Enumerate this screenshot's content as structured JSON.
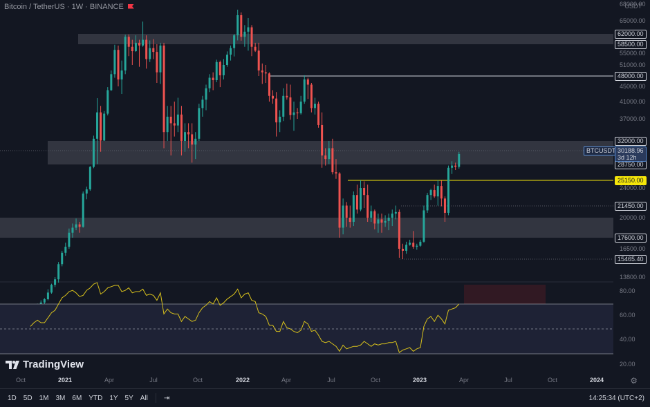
{
  "header": {
    "title": "Bitcoin / TetherUS · 1W · BINANCE",
    "currency": "USDT"
  },
  "colors": {
    "up": "#26a69a",
    "down": "#ef5350",
    "rsi": "#d9c21c",
    "yellow_line": "#f5e60a",
    "background": "#131722"
  },
  "price_labels": [
    "62000.00",
    "58500.00",
    "48000.00",
    "32000.00",
    "28750.00",
    "25150.00",
    "21450.00",
    "17600.00",
    "15465.40"
  ],
  "current": {
    "symbol": "BTCUSDT",
    "price": "30188.96",
    "countdown": "3d 12h"
  },
  "time_axis": [
    "Oct",
    "2021",
    "Apr",
    "Jul",
    "Oct",
    "2022",
    "Apr",
    "Jul",
    "Oct",
    "2023",
    "Apr",
    "Jul",
    "Oct",
    "2024"
  ],
  "rsi_axis": [
    "80.00",
    "60.00",
    "40.00",
    "20.00"
  ],
  "logo": {
    "text": "TradingView"
  },
  "bottom_bar": {
    "ranges": [
      "1D",
      "5D",
      "1M",
      "3M",
      "6M",
      "YTD",
      "1Y",
      "5Y",
      "All"
    ],
    "clock": "14:25:34 (UTC+2)"
  },
  "chart_data": {
    "type": "candlestick",
    "symbol": "BTCUSDT",
    "interval": "1W",
    "y_axis_ticks": [
      68000,
      65000,
      62000,
      58500,
      55000,
      51000,
      48000,
      45000,
      41000,
      37000,
      32000,
      28750,
      25150,
      24000,
      21450,
      20000,
      17600,
      16500,
      15465,
      13800
    ],
    "x_axis_ticks": [
      "Oct",
      "2021",
      "Apr",
      "Jul",
      "Oct",
      "2022",
      "Apr",
      "Jul",
      "Oct",
      "2023",
      "Apr",
      "Jul",
      "Oct",
      "2024"
    ],
    "support_resistance_zones": [
      [
        58500,
        62000
      ],
      [
        28750,
        32000
      ],
      [
        17600,
        20000
      ]
    ],
    "horizontal_levels": [
      48000,
      25150,
      21450,
      15465.4
    ],
    "last_price": 30188.96,
    "candles": [
      [
        10800,
        11000,
        10300,
        10600
      ],
      [
        10600,
        11200,
        10500,
        11000
      ],
      [
        11000,
        11400,
        10800,
        11300
      ],
      [
        11300,
        11700,
        11100,
        11500
      ],
      [
        11500,
        11900,
        11200,
        11800
      ],
      [
        11800,
        12700,
        11700,
        12400
      ],
      [
        12400,
        13200,
        12300,
        13100
      ],
      [
        13100,
        13800,
        12900,
        13600
      ],
      [
        13600,
        15200,
        13300,
        15000
      ],
      [
        15000,
        16300,
        14800,
        16100
      ],
      [
        16100,
        17100,
        15800,
        16700
      ],
      [
        16700,
        18700,
        16500,
        18200
      ],
      [
        18200,
        19300,
        17600,
        18800
      ],
      [
        18800,
        19900,
        18500,
        19200
      ],
      [
        19200,
        19500,
        18200,
        18900
      ],
      [
        18900,
        23500,
        18800,
        23200
      ],
      [
        23200,
        24200,
        22400,
        23800
      ],
      [
        23800,
        28400,
        23600,
        28200
      ],
      [
        28200,
        33200,
        27900,
        32500
      ],
      [
        32500,
        41900,
        28800,
        38500
      ],
      [
        38500,
        40000,
        30500,
        32100
      ],
      [
        32100,
        38800,
        32000,
        38200
      ],
      [
        38200,
        44800,
        37800,
        44000
      ],
      [
        44000,
        49500,
        43800,
        48500
      ],
      [
        48500,
        58300,
        47500,
        56300
      ],
      [
        56300,
        58000,
        45000,
        47000
      ],
      [
        47000,
        52500,
        43000,
        49500
      ],
      [
        49500,
        61700,
        48500,
        61000
      ],
      [
        61000,
        61800,
        54000,
        57500
      ],
      [
        57500,
        60000,
        51000,
        55800
      ],
      [
        55800,
        61500,
        55500,
        59000
      ],
      [
        59000,
        60000,
        50500,
        58000
      ],
      [
        58000,
        64800,
        57500,
        60000
      ],
      [
        60000,
        61500,
        50000,
        53000
      ],
      [
        53000,
        59800,
        52000,
        57000
      ],
      [
        57000,
        60200,
        53000,
        55500
      ],
      [
        55500,
        58500,
        46000,
        49000
      ],
      [
        49000,
        59000,
        45700,
        58000
      ],
      [
        58000,
        59000,
        31000,
        34000
      ],
      [
        34000,
        40000,
        32000,
        37500
      ],
      [
        37500,
        40000,
        30000,
        36000
      ],
      [
        36000,
        41000,
        33000,
        35500
      ],
      [
        35500,
        42000,
        34000,
        38000
      ],
      [
        38000,
        40000,
        30000,
        32000
      ],
      [
        32000,
        36000,
        30500,
        34000
      ],
      [
        34000,
        36000,
        31000,
        33500
      ],
      [
        33500,
        36000,
        29000,
        31500
      ],
      [
        31500,
        34000,
        29500,
        32500
      ],
      [
        32500,
        40500,
        32000,
        39500
      ],
      [
        39500,
        42500,
        37500,
        41500
      ],
      [
        41500,
        45500,
        39000,
        44500
      ],
      [
        44500,
        48500,
        43500,
        47500
      ],
      [
        47500,
        49000,
        44000,
        46800
      ],
      [
        46800,
        52800,
        46200,
        52000
      ],
      [
        52000,
        52500,
        44800,
        48200
      ],
      [
        48200,
        53000,
        47000,
        51000
      ],
      [
        51000,
        55700,
        50500,
        54500
      ],
      [
        54500,
        58000,
        52500,
        57000
      ],
      [
        57000,
        62000,
        53900,
        61500
      ],
      [
        61500,
        67000,
        59800,
        66000
      ],
      [
        66000,
        66500,
        59700,
        61000
      ],
      [
        61000,
        64000,
        57500,
        62500
      ],
      [
        62500,
        65500,
        56000,
        63500
      ],
      [
        63500,
        64000,
        54000,
        57500
      ],
      [
        57500,
        59000,
        55500,
        56000
      ],
      [
        56000,
        59000,
        48000,
        49500
      ],
      [
        49500,
        51500,
        45700,
        49000
      ],
      [
        49000,
        51000,
        46000,
        48700
      ],
      [
        48700,
        49000,
        41000,
        42500
      ],
      [
        42500,
        44000,
        40500,
        41800
      ],
      [
        41800,
        43500,
        33000,
        36200
      ],
      [
        36200,
        39000,
        34000,
        37500
      ],
      [
        37500,
        44500,
        36500,
        42500
      ],
      [
        42500,
        45800,
        41500,
        42100
      ],
      [
        42100,
        45500,
        36800,
        37900
      ],
      [
        37900,
        41000,
        34300,
        38500
      ],
      [
        38500,
        39500,
        37000,
        38300
      ],
      [
        38300,
        42500,
        38000,
        41000
      ],
      [
        41000,
        48200,
        40500,
        47000
      ],
      [
        47000,
        47500,
        41700,
        45500
      ],
      [
        45500,
        46000,
        38500,
        39500
      ],
      [
        39500,
        42000,
        38000,
        40500
      ],
      [
        40500,
        41000,
        35000,
        35600
      ],
      [
        35600,
        38500,
        28000,
        30000
      ],
      [
        30000,
        31000,
        28500,
        29500
      ],
      [
        29500,
        32000,
        28800,
        31000
      ],
      [
        31000,
        32500,
        26500,
        27000
      ],
      [
        27000,
        29500,
        25500,
        26700
      ],
      [
        26700,
        27000,
        17600,
        18800
      ],
      [
        18800,
        22500,
        18000,
        21500
      ],
      [
        21500,
        22000,
        18900,
        20000
      ],
      [
        20000,
        21500,
        18800,
        19500
      ],
      [
        19500,
        23500,
        19000,
        23000
      ],
      [
        23000,
        24500,
        20500,
        21000
      ],
      [
        21000,
        25150,
        20800,
        24000
      ],
      [
        24000,
        25000,
        21200,
        23000
      ],
      [
        23000,
        24500,
        19500,
        20000
      ],
      [
        20000,
        21500,
        19500,
        20800
      ],
      [
        20800,
        21000,
        18600,
        19300
      ],
      [
        19300,
        20500,
        18200,
        19800
      ],
      [
        19800,
        20500,
        18200,
        19400
      ],
      [
        19400,
        20300,
        18900,
        19600
      ],
      [
        19600,
        20500,
        18500,
        20000
      ],
      [
        20000,
        21000,
        19000,
        20500
      ],
      [
        20500,
        21500,
        19800,
        20700
      ],
      [
        20700,
        21000,
        15600,
        16500
      ],
      [
        16500,
        17000,
        15465,
        16300
      ],
      [
        16300,
        17200,
        16000,
        16900
      ],
      [
        16900,
        17400,
        16800,
        17100
      ],
      [
        17100,
        18400,
        16500,
        16700
      ],
      [
        16700,
        17000,
        16400,
        16800
      ],
      [
        16800,
        17400,
        16700,
        17200
      ],
      [
        17200,
        21500,
        17100,
        20900
      ],
      [
        20900,
        23300,
        20600,
        23000
      ],
      [
        23000,
        23900,
        22300,
        23700
      ],
      [
        23700,
        24500,
        22600,
        22800
      ],
      [
        22800,
        25200,
        21500,
        24300
      ],
      [
        24300,
        25100,
        21400,
        22500
      ],
      [
        22500,
        22800,
        19500,
        20600
      ],
      [
        20600,
        28500,
        20300,
        28000
      ],
      [
        28000,
        29200,
        26600,
        28500
      ],
      [
        28500,
        29000,
        27500,
        28200
      ],
      [
        28200,
        30500,
        27800,
        30188.96
      ]
    ]
  },
  "rsi_data": {
    "levels": [
      70,
      50,
      30
    ],
    "axis": [
      80,
      60,
      40,
      20
    ],
    "values": [
      52,
      55,
      57,
      55,
      55,
      59,
      63,
      65,
      70,
      75,
      77,
      80,
      81,
      79,
      76,
      77,
      81,
      83,
      86,
      89,
      78,
      80,
      83,
      84,
      85,
      85,
      80,
      81,
      83,
      79,
      80,
      80,
      82,
      77,
      78,
      77,
      73,
      79,
      62,
      66,
      63,
      62,
      62,
      56,
      60,
      58,
      56,
      57,
      63,
      67,
      69,
      72,
      70,
      75,
      69,
      71,
      74,
      76,
      78,
      82,
      75,
      78,
      79,
      73,
      72,
      63,
      62,
      60,
      53,
      53,
      48,
      48,
      56,
      51,
      50,
      48,
      47,
      49,
      56,
      54,
      48,
      49,
      45,
      40,
      39,
      40,
      38,
      36,
      32,
      37,
      34,
      35,
      36,
      36,
      37,
      40,
      38,
      36,
      38,
      37,
      38,
      38,
      39,
      39,
      40,
      31,
      33,
      34,
      35,
      32,
      34,
      35,
      52,
      58,
      60,
      56,
      61,
      58,
      54,
      65,
      66,
      67,
      70
    ]
  }
}
